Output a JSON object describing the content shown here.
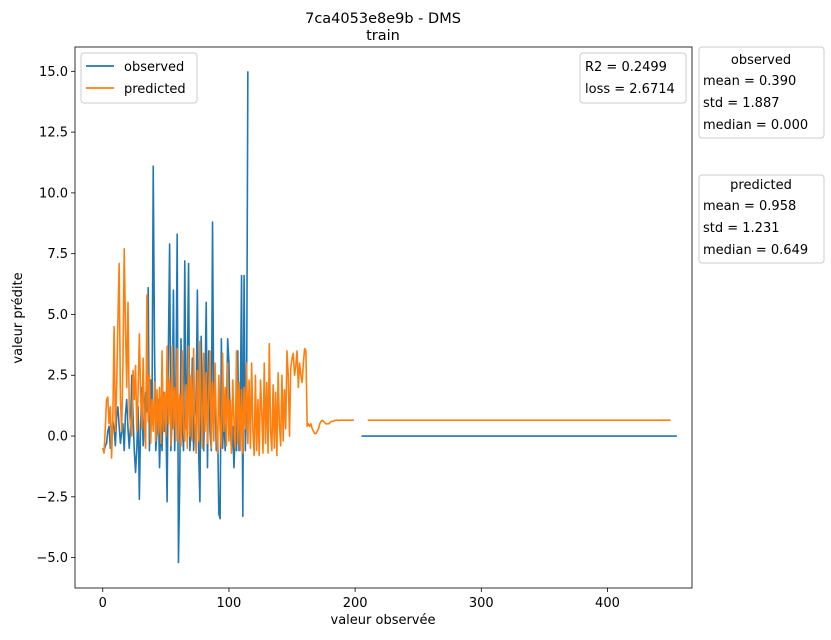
{
  "chart_data": {
    "type": "line",
    "title": "7ca4053e8e9b - DMS",
    "subtitle": "train",
    "xlabel": "valeur observée",
    "ylabel": "valeur prédite",
    "xlim": [
      -22,
      467
    ],
    "ylim": [
      -6.25,
      16.0
    ],
    "x_ticks": [
      0,
      100,
      200,
      300,
      400
    ],
    "y_ticks": [
      -5.0,
      -2.5,
      0.0,
      2.5,
      5.0,
      7.5,
      10.0,
      12.5,
      15.0
    ],
    "x_tick_labels": [
      "0",
      "100",
      "200",
      "300",
      "400"
    ],
    "y_tick_labels": [
      "−5.0",
      "−2.5",
      "0.0",
      "2.5",
      "5.0",
      "7.5",
      "10.0",
      "12.5",
      "15.0"
    ],
    "grid": false,
    "legend_position": "top-left",
    "colors": {
      "observed": "#1f77b4",
      "predicted": "#ff7f0e"
    },
    "series": [
      {
        "name": "observed",
        "segments": [
          {
            "x_start": 0,
            "values": [
              -0.5,
              -0.6,
              -0.4,
              -0.3,
              0.2,
              0.4,
              -0.5,
              -0.2,
              0.6,
              0.3,
              -0.4,
              0.8,
              1.2,
              0.4,
              -0.3,
              0.2,
              0.5,
              -0.6,
              0.9,
              1.5,
              0.3,
              -0.5,
              0.4,
              2.5,
              0.8,
              -0.6,
              -1.5,
              -0.5,
              1.2,
              -2.6,
              0.5,
              2.0,
              -0.4,
              0.8,
              1.8,
              1.0,
              6.1,
              -0.6,
              2.3,
              0.5,
              11.1,
              3.8,
              -0.6,
              0.2,
              1.5,
              -1.3,
              0.5,
              -0.6,
              1.8,
              0.2,
              1.0,
              -2.7,
              3.5,
              7.9,
              -0.6,
              0.8,
              6.0,
              -0.6,
              2.1,
              8.3,
              -5.2,
              -1.9,
              4.0,
              0.5,
              -0.6,
              7.2,
              0.3,
              2.5,
              7.1,
              -0.6,
              0.3,
              3.2,
              -0.6,
              0.8,
              1.4,
              6.0,
              -0.6,
              -2.7,
              4.1,
              1.3,
              -0.6,
              2.0,
              5.5,
              -1.3,
              3.5,
              0.2,
              -0.6,
              8.8,
              0.5,
              2.0,
              -0.6,
              0.4,
              -3.2,
              -3.4,
              4.0,
              -0.5,
              1.0,
              -0.6,
              0.8,
              4.0,
              3.0,
              0.5,
              -0.6,
              0.4,
              -1.3,
              0.2,
              -0.6,
              3.5,
              -0.6,
              1.2,
              6.6,
              -3.3,
              6.6,
              -0.6,
              1.5,
              15.0
            ],
            "note": ""
          },
          {
            "x_start": 205,
            "values": [
              0.0,
              0.0,
              0.0,
              0.0,
              0.0,
              0.0,
              0.0,
              0.0,
              0.0,
              0.0,
              0.0,
              0.0,
              0.0,
              0.0,
              0.0,
              0.0,
              0.0,
              0.0,
              0.0,
              0.0,
              0.0,
              0.0,
              0.0,
              0.0,
              0.0,
              0.0
            ],
            "x_step": 10,
            "x_end": 455
          }
        ]
      },
      {
        "name": "predicted",
        "segments": [
          {
            "x_start": 0,
            "values": [
              -0.5,
              -0.7,
              0.3,
              1.5,
              1.6,
              0.5,
              1.2,
              -0.9,
              0.8,
              4.5,
              0.2,
              2.0,
              4.7,
              7.1,
              1.5,
              0.2,
              3.0,
              7.7,
              4.5,
              2.0,
              5.5,
              1.0,
              0.5,
              0.0,
              2.7,
              1.5,
              2.9,
              0.2,
              1.8,
              4.2,
              1.7,
              0.3,
              3.2,
              0.4,
              -0.5,
              5.8,
              0.6,
              2.5,
              -0.3,
              1.5,
              0.2,
              2.2,
              -0.2,
              1.9,
              0.1,
              2.0,
              -0.3,
              3.5,
              0.2,
              1.8,
              0.0,
              3.7,
              0.5,
              2.3,
              -0.4,
              3.7,
              0.3,
              2.0,
              -0.2,
              3.6,
              -0.2,
              1.7,
              -0.4,
              3.5,
              0.2,
              -0.2,
              2.1,
              -0.5,
              3.7,
              0.0,
              2.5,
              -0.2,
              3.6,
              0.5,
              -0.7,
              2.7,
              -0.2,
              3.9,
              0.8,
              -0.5,
              3.4,
              0.2,
              2.6,
              -0.3,
              1.7,
              3.5,
              -0.5,
              2.2,
              -0.2,
              3.0,
              0.4,
              -0.7,
              2.5,
              0.3,
              -0.5,
              3.4,
              0.2,
              2.0,
              -0.4,
              3.0,
              -0.2,
              1.5,
              -0.7,
              2.3,
              0.6,
              -0.5,
              3.5,
              -0.3,
              2.2,
              -0.6,
              1.9,
              -0.7,
              2.0,
              0.3,
              3.0,
              -0.3,
              2.3,
              -0.5,
              3.0,
              0.2,
              -0.8,
              2.5,
              -0.6,
              1.5,
              -0.8,
              2.3,
              1.0,
              -0.7,
              3.0,
              -0.3,
              2.2,
              -0.7,
              3.8,
              0.2,
              -0.6,
              2.1,
              -0.5,
              1.8,
              -0.8,
              2.6,
              0.5,
              -0.4,
              2.5,
              -0.2,
              1.9,
              0.3,
              3.5,
              2.5,
              0.0,
              2.8,
              3.2,
              3.4,
              2.5,
              2.9,
              3.5,
              2.0,
              3.0,
              2.5,
              2.2,
              3.0,
              3.6,
              3.5,
              0.4,
              0.5,
              0.4,
              0.5,
              0.3,
              0.2,
              0.1,
              0.1,
              0.2,
              0.3,
              0.5,
              0.6,
              0.65,
              0.6,
              0.55,
              0.5,
              0.5,
              0.5,
              0.55,
              0.6,
              0.6,
              0.62,
              0.64,
              0.65,
              0.65,
              0.64,
              0.65,
              0.65,
              0.65,
              0.65,
              0.65,
              0.65,
              0.65,
              0.65,
              0.65,
              0.65,
              0.65,
              0.65
            ],
            "x_step": 1
          },
          {
            "x_start": 210,
            "values": [
              0.65,
              0.65,
              0.65,
              0.65,
              0.65,
              0.65,
              0.65,
              0.65,
              0.65,
              0.65,
              0.65,
              0.65,
              0.65,
              0.65,
              0.65,
              0.65,
              0.65,
              0.65,
              0.65,
              0.65,
              0.65,
              0.65,
              0.65,
              0.65,
              0.65
            ],
            "x_step": 10,
            "x_end": 455
          }
        ]
      }
    ],
    "metrics_box": {
      "r2": "R2 = 0.2499",
      "loss": "loss = 2.6714"
    },
    "stats": {
      "observed": {
        "title": "observed",
        "mean": "mean = 0.390",
        "std": "std = 1.887",
        "median": "median = 0.000"
      },
      "predicted": {
        "title": "predicted",
        "mean": "mean = 0.958",
        "std": "std = 1.231",
        "median": "median = 0.649"
      }
    }
  }
}
